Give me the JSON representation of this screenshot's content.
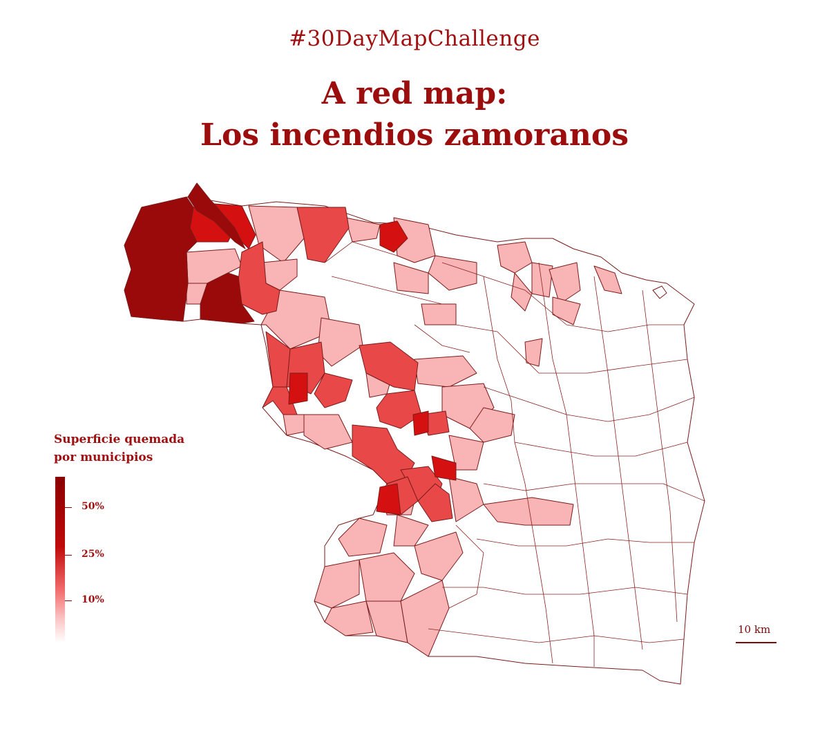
{
  "header": {
    "hashtag": "#30DayMapChallenge",
    "title_line1": "A red map:",
    "title_line2": "Los incendios zamoranos"
  },
  "legend": {
    "title_line1": "Superficie quemada",
    "title_line2": "por municipios",
    "ticks": [
      {
        "label": "50%",
        "value": 50
      },
      {
        "label": "25%",
        "value": 25
      },
      {
        "label": "10%",
        "value": 10
      }
    ]
  },
  "scale": {
    "label": "10 km"
  },
  "colors": {
    "level_50_plus": "#9b0a0a",
    "level_25_50": "#d51010",
    "level_10_25": "#e84848",
    "level_under_10": "#f9b5b5",
    "none": "#ffffff",
    "border": "#7a1a1a",
    "text": "#a01010"
  }
}
